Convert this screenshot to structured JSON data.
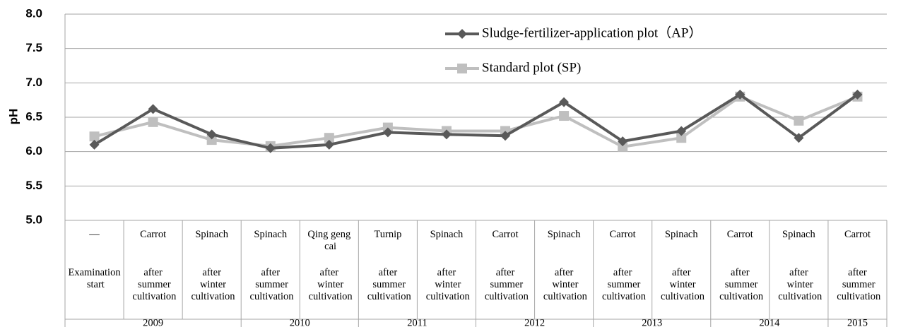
{
  "chart_data": {
    "type": "line",
    "ylabel": "pH",
    "categories": [
      "—",
      "Carrot",
      "Spinach",
      "Spinach",
      "Qing geng cai",
      "Turnip",
      "Spinach",
      "Carrot",
      "Spinach",
      "Carrot",
      "Spinach",
      "Carrot",
      "Spinach",
      "Carrot"
    ],
    "stages": [
      "Examination start",
      "after summer cultivation",
      "after winter cultivation",
      "after summer cultivation",
      "after winter cultivation",
      "after summer cultivation",
      "after winter cultivation",
      "after summer cultivation",
      "after winter cultivation",
      "after summer cultivation",
      "after winter cultivation",
      "after summer cultivation",
      "after winter cultivation",
      "after summer cultivation"
    ],
    "years": [
      "2009",
      null,
      null,
      "2010",
      null,
      "2011",
      null,
      "2012",
      null,
      "2013",
      null,
      "2014",
      null,
      "2015"
    ],
    "series": [
      {
        "name": "Sludge-fertilizer-application  plot（AP）",
        "color": "#595959",
        "marker": "diamond",
        "values": [
          6.1,
          6.62,
          6.25,
          6.05,
          6.1,
          6.28,
          6.25,
          6.23,
          6.72,
          6.15,
          6.3,
          6.83,
          6.2,
          6.83
        ]
      },
      {
        "name": "Standard plot (SP)",
        "color": "#bfbfbf",
        "marker": "square",
        "values": [
          6.22,
          6.43,
          6.17,
          6.08,
          6.2,
          6.35,
          6.3,
          6.3,
          6.52,
          6.07,
          6.2,
          6.8,
          6.45,
          6.8
        ]
      }
    ],
    "ylim": [
      5,
      8
    ],
    "yticks": [
      {
        "value": 5,
        "label": "5.0"
      },
      {
        "value": 5.5,
        "label": "5.5"
      },
      {
        "value": 6,
        "label": "6.0"
      },
      {
        "value": 6.5,
        "label": "6.5"
      },
      {
        "value": 7,
        "label": "7.0"
      },
      {
        "value": 7.5,
        "label": "7.5"
      },
      {
        "value": 8,
        "label": "8.0"
      }
    ],
    "grid": true
  }
}
